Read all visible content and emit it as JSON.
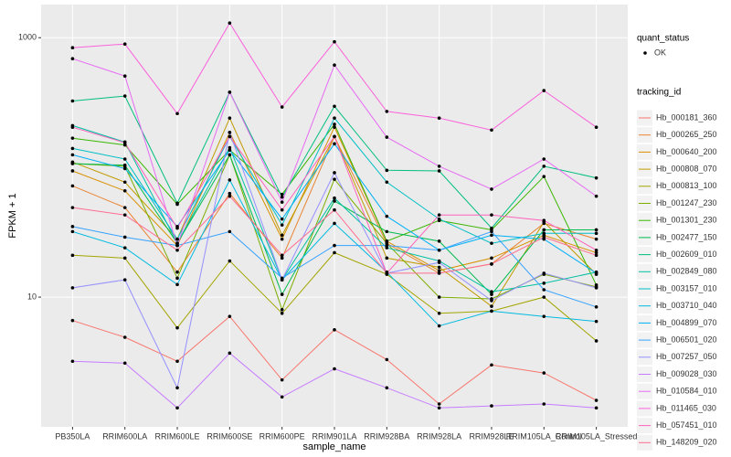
{
  "chart_data": {
    "type": "line",
    "log_y": true,
    "grid": true,
    "xlabel": "sample_name",
    "ylabel": "FPKM + 1",
    "categories": [
      "PB350LA",
      "RRIM600LA",
      "RRIM600LE",
      "RRIM600SE",
      "RRIM600PE",
      "RRIM901LA",
      "RRIM928BA",
      "RRIM928LA",
      "RRIM928LE",
      "RRIM105LA_Control",
      "RRIM105LA_Stressed"
    ],
    "ylim": [
      1,
      1800
    ],
    "yticks": [
      10,
      1000
    ],
    "shape_legend": {
      "title": "quant_status",
      "entries": [
        "OK"
      ]
    },
    "legend_title": "tracking_id",
    "series": [
      {
        "name": "Hb_000181_360",
        "color": "#F8766D",
        "values": [
          6.6,
          4.9,
          3.2,
          7.1,
          2.3,
          5.6,
          3.3,
          1.5,
          3.0,
          2.6,
          1.6
        ]
      },
      {
        "name": "Hb_000265_250",
        "color": "#EA8331",
        "values": [
          72,
          49,
          15.6,
          63,
          20,
          173,
          26,
          15.3,
          18,
          37,
          28
        ]
      },
      {
        "name": "Hb_000640_200",
        "color": "#D89000",
        "values": [
          94,
          66,
          25,
          186,
          28,
          204,
          27,
          16,
          20,
          30,
          22
        ]
      },
      {
        "name": "Hb_000808_070",
        "color": "#C09B00",
        "values": [
          110,
          77,
          28,
          240,
          30,
          173,
          20,
          17,
          8.5,
          38,
          15
        ]
      },
      {
        "name": "Hb_000813_100",
        "color": "#A3A500",
        "values": [
          21,
          20,
          5.8,
          19,
          7.5,
          22,
          15,
          7.5,
          7.8,
          10,
          4.6
        ]
      },
      {
        "name": "Hb_001247_230",
        "color": "#7CAE00",
        "values": [
          107,
          102,
          14,
          125,
          8,
          81,
          26,
          10,
          9.7,
          15,
          12
        ]
      },
      {
        "name": "Hb_001301_230",
        "color": "#39B600",
        "values": [
          168,
          149,
          52,
          136,
          62,
          215,
          27,
          39,
          33,
          85,
          12.4
        ]
      },
      {
        "name": "Hb_002477_150",
        "color": "#00BB4E",
        "values": [
          107,
          104,
          26,
          125,
          10.5,
          55,
          32,
          27,
          10.5,
          33,
          33
        ]
      },
      {
        "name": "Hb_002609_010",
        "color": "#00BF7D",
        "values": [
          325,
          355,
          53,
          380,
          59,
          296,
          95,
          94,
          34,
          102,
          83
        ]
      },
      {
        "name": "Hb_002849_080",
        "color": "#00C1A3",
        "values": [
          210,
          157,
          26,
          142,
          13.6,
          58,
          24,
          19,
          11,
          12.8,
          15.6
        ]
      },
      {
        "name": "Hb_003157_010",
        "color": "#00BFC4",
        "values": [
          140,
          116,
          28,
          173,
          36,
          240,
          77,
          40,
          26,
          31,
          31
        ]
      },
      {
        "name": "Hb_003710_040",
        "color": "#00BAE0",
        "values": [
          32,
          24,
          12.5,
          80,
          13.6,
          37,
          15.6,
          6,
          7.8,
          7.1,
          6.5
        ]
      },
      {
        "name": "Hb_004899_070",
        "color": "#00B0F6",
        "values": [
          125,
          98,
          35,
          136,
          40,
          152,
          42,
          23,
          30,
          28,
          15.3
        ]
      },
      {
        "name": "Hb_006501_020",
        "color": "#35A2FF",
        "values": [
          35,
          29,
          25,
          32,
          14,
          25,
          25,
          23,
          32,
          11.4,
          8.4
        ]
      },
      {
        "name": "Hb_007257_050",
        "color": "#9590FF",
        "values": [
          11.8,
          13.6,
          2,
          186,
          13.6,
          91,
          15.3,
          18.5,
          9.4,
          15.3,
          11.8
        ]
      },
      {
        "name": "Hb_009028_030",
        "color": "#C77CFF",
        "values": [
          3.2,
          3.1,
          1.4,
          3.7,
          1.7,
          2.8,
          2.0,
          1.4,
          1.45,
          1.5,
          1.4
        ]
      },
      {
        "name": "Hb_010584_010",
        "color": "#E76BF3",
        "values": [
          689,
          506,
          25,
          380,
          54,
          615,
          171,
          102,
          68,
          116,
          60
        ]
      },
      {
        "name": "Hb_011465_030",
        "color": "#FA62DB",
        "values": [
          837,
          893,
          260,
          1297,
          292,
          930,
          270,
          240,
          194,
          391,
          204
        ]
      },
      {
        "name": "Hb_057451_010",
        "color": "#FF62BC",
        "values": [
          204,
          155,
          34,
          173,
          47,
          173,
          15.3,
          43,
          43,
          39,
          23
        ]
      },
      {
        "name": "Hb_148209_020",
        "color": "#FF6C91",
        "values": [
          49,
          43,
          23,
          60,
          21,
          47,
          15.3,
          15.3,
          18,
          29,
          21
        ]
      }
    ]
  }
}
